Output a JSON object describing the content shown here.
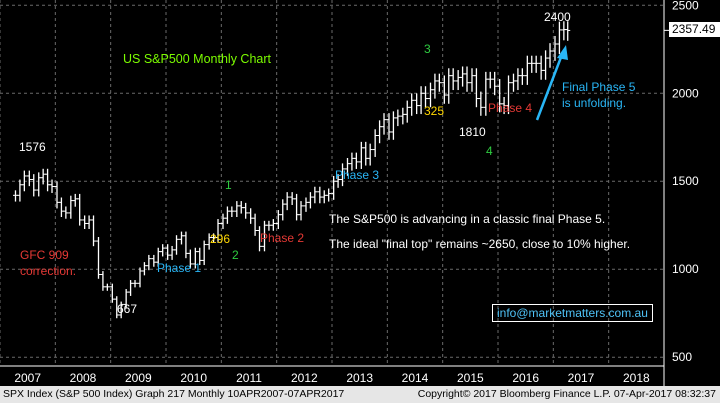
{
  "chart_data": {
    "type": "ohlc",
    "title": "US S&P500 Monthly Chart",
    "x_axis": [
      "2007",
      "2008",
      "2009",
      "2010",
      "2011",
      "2012",
      "2013",
      "2014",
      "2015",
      "2016",
      "2017",
      "2018"
    ],
    "y_ticks": [
      500,
      1000,
      1500,
      2000,
      2500
    ],
    "ylim": [
      450,
      2530
    ],
    "last_price": "2357.49",
    "series": [
      {
        "name": "SPX Index",
        "points": [
          [
            2007.28,
            1420
          ],
          [
            2007.36,
            1480
          ],
          [
            2007.44,
            1530
          ],
          [
            2007.53,
            1510
          ],
          [
            2007.61,
            1450
          ],
          [
            2007.7,
            1520
          ],
          [
            2007.78,
            1540
          ],
          [
            2007.86,
            1480
          ],
          [
            2007.94,
            1470
          ],
          [
            2008.03,
            1380
          ],
          [
            2008.11,
            1330
          ],
          [
            2008.19,
            1320
          ],
          [
            2008.28,
            1390
          ],
          [
            2008.36,
            1400
          ],
          [
            2008.44,
            1280
          ],
          [
            2008.53,
            1260
          ],
          [
            2008.61,
            1280
          ],
          [
            2008.69,
            1160
          ],
          [
            2008.78,
            970
          ],
          [
            2008.86,
            900
          ],
          [
            2008.94,
            900
          ],
          [
            2009.03,
            830
          ],
          [
            2009.11,
            740
          ],
          [
            2009.19,
            800
          ],
          [
            2009.28,
            870
          ],
          [
            2009.36,
            920
          ],
          [
            2009.44,
            920
          ],
          [
            2009.53,
            990
          ],
          [
            2009.61,
            1020
          ],
          [
            2009.69,
            1060
          ],
          [
            2009.78,
            1040
          ],
          [
            2009.86,
            1100
          ],
          [
            2009.94,
            1120
          ],
          [
            2010.03,
            1080
          ],
          [
            2010.11,
            1110
          ],
          [
            2010.19,
            1170
          ],
          [
            2010.28,
            1190
          ],
          [
            2010.36,
            1090
          ],
          [
            2010.44,
            1030
          ],
          [
            2010.53,
            1100
          ],
          [
            2010.61,
            1050
          ],
          [
            2010.69,
            1140
          ],
          [
            2010.78,
            1180
          ],
          [
            2010.86,
            1180
          ],
          [
            2010.94,
            1260
          ],
          [
            2011.03,
            1290
          ],
          [
            2011.11,
            1330
          ],
          [
            2011.19,
            1330
          ],
          [
            2011.28,
            1360
          ],
          [
            2011.36,
            1350
          ],
          [
            2011.44,
            1320
          ],
          [
            2011.53,
            1290
          ],
          [
            2011.61,
            1220
          ],
          [
            2011.69,
            1130
          ],
          [
            2011.78,
            1250
          ],
          [
            2011.86,
            1250
          ],
          [
            2011.94,
            1260
          ],
          [
            2012.03,
            1310
          ],
          [
            2012.11,
            1370
          ],
          [
            2012.19,
            1410
          ],
          [
            2012.28,
            1400
          ],
          [
            2012.36,
            1310
          ],
          [
            2012.44,
            1360
          ],
          [
            2012.53,
            1380
          ],
          [
            2012.61,
            1410
          ],
          [
            2012.69,
            1440
          ],
          [
            2012.78,
            1410
          ],
          [
            2012.86,
            1420
          ],
          [
            2012.94,
            1430
          ],
          [
            2013.03,
            1500
          ],
          [
            2013.11,
            1510
          ],
          [
            2013.19,
            1570
          ],
          [
            2013.28,
            1600
          ],
          [
            2013.36,
            1630
          ],
          [
            2013.44,
            1610
          ],
          [
            2013.53,
            1690
          ],
          [
            2013.61,
            1630
          ],
          [
            2013.69,
            1680
          ],
          [
            2013.78,
            1760
          ],
          [
            2013.86,
            1810
          ],
          [
            2013.94,
            1850
          ],
          [
            2014.03,
            1780
          ],
          [
            2014.11,
            1860
          ],
          [
            2014.19,
            1870
          ],
          [
            2014.28,
            1880
          ],
          [
            2014.36,
            1920
          ],
          [
            2014.44,
            1960
          ],
          [
            2014.53,
            1930
          ],
          [
            2014.61,
            2000
          ],
          [
            2014.69,
            1970
          ],
          [
            2014.78,
            2020
          ],
          [
            2014.86,
            2070
          ],
          [
            2014.94,
            2060
          ],
          [
            2015.03,
            1990
          ],
          [
            2015.11,
            2100
          ],
          [
            2015.19,
            2070
          ],
          [
            2015.28,
            2090
          ],
          [
            2015.36,
            2110
          ],
          [
            2015.44,
            2060
          ],
          [
            2015.53,
            2100
          ],
          [
            2015.61,
            1970
          ],
          [
            2015.69,
            1920
          ],
          [
            2015.78,
            2080
          ],
          [
            2015.86,
            2080
          ],
          [
            2015.94,
            2040
          ],
          [
            2016.03,
            1940
          ],
          [
            2016.11,
            1930
          ],
          [
            2016.19,
            2060
          ],
          [
            2016.28,
            2070
          ],
          [
            2016.36,
            2100
          ],
          [
            2016.44,
            2100
          ],
          [
            2016.53,
            2170
          ],
          [
            2016.61,
            2170
          ],
          [
            2016.69,
            2170
          ],
          [
            2016.78,
            2130
          ],
          [
            2016.86,
            2200
          ],
          [
            2016.94,
            2240
          ],
          [
            2017.03,
            2280
          ],
          [
            2017.11,
            2360
          ],
          [
            2017.19,
            2362
          ],
          [
            2017.26,
            2357
          ]
        ]
      }
    ],
    "annotations": [
      {
        "text": "US S&P500 Monthly Chart",
        "color": "#7CFC00"
      },
      {
        "text": "1576",
        "color": "#ffffff"
      },
      {
        "text": "667",
        "color": "#ffffff"
      },
      {
        "text": "GFC 909",
        "color": "#e53935"
      },
      {
        "text": "correction.",
        "color": "#e53935"
      },
      {
        "text": "Phase 1",
        "color": "#29b6f6"
      },
      {
        "text": "1",
        "color": "#2ecc40"
      },
      {
        "text": "296",
        "color": "#ffd700"
      },
      {
        "text": "2",
        "color": "#2ecc40"
      },
      {
        "text": "Phase 2",
        "color": "#e53935"
      },
      {
        "text": "Phase 3",
        "color": "#29b6f6"
      },
      {
        "text": "3",
        "color": "#2ecc40"
      },
      {
        "text": "325",
        "color": "#ffd700"
      },
      {
        "text": "1810",
        "color": "#ffffff"
      },
      {
        "text": "4",
        "color": "#2ecc40"
      },
      {
        "text": "Phase 4",
        "color": "#e53935"
      },
      {
        "text": "2400",
        "color": "#ffffff"
      },
      {
        "text": "Final Phase 5",
        "color": "#29b6f6"
      },
      {
        "text": "is unfolding.",
        "color": "#29b6f6"
      },
      {
        "text": "The S&P500 is advancing in a classic final Phase 5.",
        "color": "#ffffff"
      },
      {
        "text": "The ideal \"final top\" remains ~2650, close to 10% higher.",
        "color": "#ffffff"
      }
    ]
  },
  "email": "info@marketmatters.com.au",
  "footer": {
    "left": "SPX Index (S&P 500 Index) Graph 217  Monthly 10APR2007-07APR2017",
    "right": "Copyright© 2017 Bloomberg Finance L.P.    07-Apr-2017 08:32:37"
  },
  "colors": {
    "background": "#000000",
    "bars": "#ffffff",
    "grid": "#6a6a6a",
    "arrow": "#29b6f6"
  }
}
